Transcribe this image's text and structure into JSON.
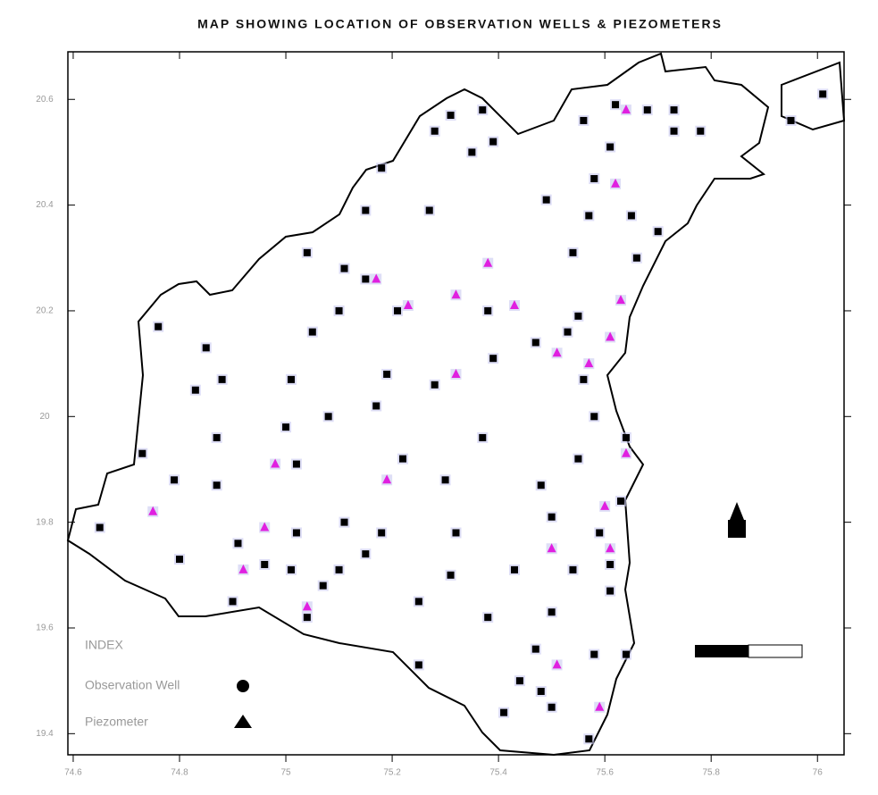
{
  "chart_data": {
    "type": "scatter",
    "title": "MAP SHOWING LOCATION OF OBSERVATION WELLS & PIEZOMETERS",
    "legend_title": "INDEX",
    "xlim": [
      74.59,
      76.05
    ],
    "ylim": [
      19.36,
      20.69
    ],
    "xticks": [
      74.6,
      74.8,
      75,
      75.2,
      75.4,
      75.6,
      75.8,
      76
    ],
    "yticks": [
      19.4,
      19.6,
      19.8,
      20,
      20.2,
      20.4,
      20.6
    ],
    "series": [
      {
        "name": "Observation Well",
        "color": "#000000",
        "marker": "square",
        "x": [
          75.37,
          75.31,
          75.28,
          75.35,
          75.39,
          75.56,
          75.68,
          75.73,
          75.78,
          75.61,
          75.95,
          76.01,
          75.18,
          75.15,
          75.27,
          75.04,
          75.11,
          75.15,
          75.21,
          75.1,
          75.05,
          74.85,
          74.76,
          74.83,
          74.88,
          74.87,
          74.73,
          74.79,
          74.87,
          74.65,
          74.8,
          75.01,
          75.0,
          75.08,
          75.17,
          75.19,
          75.02,
          75.22,
          75.3,
          75.37,
          75.28,
          75.38,
          75.39,
          75.47,
          75.53,
          75.55,
          75.49,
          75.58,
          75.57,
          75.65,
          75.7,
          75.66,
          75.54,
          75.56,
          75.58,
          75.64,
          75.48,
          75.55,
          75.5,
          75.59,
          75.63,
          75.61,
          75.61,
          75.54,
          75.43,
          75.31,
          75.32,
          75.25,
          75.38,
          75.5,
          75.47,
          75.44,
          75.48,
          75.58,
          75.5,
          75.64,
          75.57,
          75.41,
          75.25,
          75.04,
          75.07,
          75.1,
          75.01,
          74.96,
          74.91,
          74.9,
          75.02,
          75.11,
          75.15,
          75.18,
          75.73,
          75.62
        ],
        "y": [
          20.58,
          20.57,
          20.54,
          20.5,
          20.52,
          20.56,
          20.58,
          20.54,
          20.54,
          20.51,
          20.56,
          20.61,
          20.47,
          20.39,
          20.39,
          20.31,
          20.28,
          20.26,
          20.2,
          20.2,
          20.16,
          20.13,
          20.17,
          20.05,
          20.07,
          19.96,
          19.93,
          19.88,
          19.87,
          19.79,
          19.73,
          20.07,
          19.98,
          20.0,
          20.02,
          20.08,
          19.91,
          19.92,
          19.88,
          19.96,
          20.06,
          20.2,
          20.11,
          20.14,
          20.16,
          20.19,
          20.41,
          20.45,
          20.38,
          20.38,
          20.35,
          20.3,
          20.31,
          20.07,
          20.0,
          19.96,
          19.87,
          19.92,
          19.81,
          19.78,
          19.84,
          19.72,
          19.67,
          19.71,
          19.71,
          19.7,
          19.78,
          19.65,
          19.62,
          19.63,
          19.56,
          19.5,
          19.48,
          19.55,
          19.45,
          19.55,
          19.39,
          19.44,
          19.53,
          19.62,
          19.68,
          19.71,
          19.71,
          19.72,
          19.76,
          19.65,
          19.78,
          19.8,
          19.74,
          19.78,
          20.58,
          20.59
        ]
      },
      {
        "name": "Piezometer",
        "color": "#e020e0",
        "marker": "triangle",
        "x": [
          75.64,
          75.62,
          75.38,
          75.43,
          75.32,
          75.23,
          75.17,
          75.63,
          75.61,
          75.51,
          75.57,
          75.32,
          74.98,
          75.19,
          74.75,
          74.96,
          74.92,
          75.04,
          75.5,
          75.61,
          75.6,
          75.64,
          75.51,
          75.59
        ],
        "y": [
          20.58,
          20.44,
          20.29,
          20.21,
          20.23,
          20.21,
          20.26,
          20.22,
          20.15,
          20.12,
          20.1,
          20.08,
          19.91,
          19.88,
          19.82,
          19.79,
          19.71,
          19.64,
          19.75,
          19.75,
          19.83,
          19.93,
          19.53,
          19.45
        ]
      }
    ]
  }
}
